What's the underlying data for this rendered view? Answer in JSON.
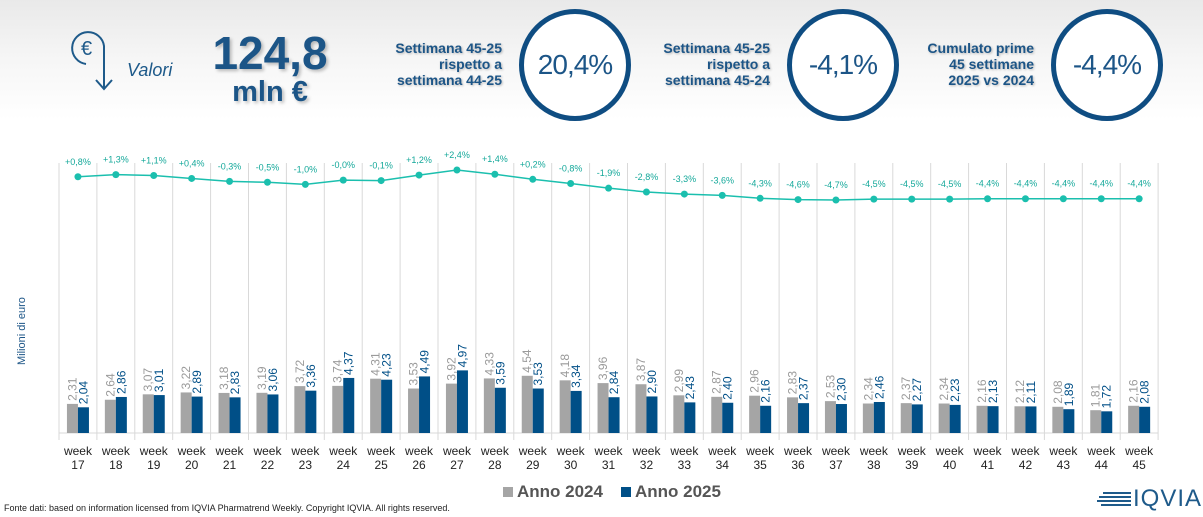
{
  "header": {
    "icon": "euro-down-arrow-icon",
    "label": "Valori",
    "total_value": "124,8",
    "total_unit": "mln €"
  },
  "kpis": [
    {
      "label_lines": [
        "Settimana 45-25",
        "rispetto a",
        "settimana 44-25"
      ],
      "value": "20,4%"
    },
    {
      "label_lines": [
        "Settimana 45-25",
        "rispetto a",
        "settimana 45-24"
      ],
      "value": "-4,1%"
    },
    {
      "label_lines": [
        "Cumulato prime",
        "45 settimane",
        "2025 vs 2024"
      ],
      "value": "-4,4%"
    }
  ],
  "colors": {
    "brand": "#1c5587",
    "series_2024": "#a5a5a5",
    "series_2025": "#004f87",
    "line": "#1bbfae",
    "grid": "#d9d9d9"
  },
  "chart_data": [
    {
      "type": "line",
      "title": "",
      "description": "Cumulative % change 2025 vs 2024",
      "x": [
        "week 17",
        "week 18",
        "week 19",
        "week 20",
        "week 21",
        "week 22",
        "week 23",
        "week 24",
        "week 25",
        "week 26",
        "week 27",
        "week 28",
        "week 29",
        "week 30",
        "week 31",
        "week 32",
        "week 33",
        "week 34",
        "week 35",
        "week 36",
        "week 37",
        "week 38",
        "week 39",
        "week 40",
        "week 41",
        "week 42",
        "week 43",
        "week 44",
        "week 45"
      ],
      "values": [
        0.8,
        1.3,
        1.1,
        0.4,
        -0.3,
        -0.5,
        -1.0,
        -0.0,
        -0.1,
        1.2,
        2.4,
        1.4,
        0.2,
        -0.8,
        -1.9,
        -2.8,
        -3.3,
        -3.6,
        -4.3,
        -4.6,
        -4.7,
        -4.5,
        -4.5,
        -4.5,
        -4.4,
        -4.4,
        -4.4,
        -4.4,
        -4.4
      ],
      "labels": [
        "+0,8%",
        "+1,3%",
        "+1,1%",
        "+0,4%",
        "-0,3%",
        "-0,5%",
        "-1,0%",
        "-0,0%",
        "-0,1%",
        "+1,2%",
        "+2,4%",
        "+1,4%",
        "+0,2%",
        "-0,8%",
        "-1,9%",
        "-2,8%",
        "-3,3%",
        "-3,6%",
        "-4,3%",
        "-4,6%",
        "-4,7%",
        "-4,5%",
        "-4,5%",
        "-4,5%",
        "-4,4%",
        "-4,4%",
        "-4,4%",
        "-4,4%",
        "-4,4%"
      ],
      "ylim": [
        -5,
        3
      ]
    },
    {
      "type": "bar",
      "title": "",
      "xlabel": "",
      "ylabel": "Milioni di euro",
      "categories_top": [
        "week",
        "week",
        "week",
        "week",
        "week",
        "week",
        "week",
        "week",
        "week",
        "week",
        "week",
        "week",
        "week",
        "week",
        "week",
        "week",
        "week",
        "week",
        "week",
        "week",
        "week",
        "week",
        "week",
        "week",
        "week",
        "week",
        "week",
        "week",
        "week"
      ],
      "categories": [
        "17",
        "18",
        "19",
        "20",
        "21",
        "22",
        "23",
        "24",
        "25",
        "26",
        "27",
        "28",
        "29",
        "30",
        "31",
        "32",
        "33",
        "34",
        "35",
        "36",
        "37",
        "38",
        "39",
        "40",
        "41",
        "42",
        "43",
        "44",
        "45"
      ],
      "series": [
        {
          "name": "Anno 2024",
          "values": [
            2.31,
            2.64,
            3.07,
            3.22,
            3.18,
            3.19,
            3.72,
            3.74,
            4.31,
            3.53,
            3.92,
            4.33,
            4.54,
            4.18,
            3.96,
            3.87,
            2.99,
            2.87,
            2.96,
            2.83,
            2.53,
            2.34,
            2.37,
            2.34,
            2.16,
            2.12,
            2.08,
            1.81,
            2.16
          ],
          "labels": [
            "2,31",
            "2,64",
            "3,07",
            "3,22",
            "3,18",
            "3,19",
            "3,72",
            "3,74",
            "4,31",
            "3,53",
            "3,92",
            "4,33",
            "4,54",
            "4,18",
            "3,96",
            "3,87",
            "2,99",
            "2,87",
            "2,96",
            "2,83",
            "2,53",
            "2,34",
            "2,37",
            "2,34",
            "2,16",
            "2,12",
            "2,08",
            "1,81",
            "2,16"
          ]
        },
        {
          "name": "Anno 2025",
          "values": [
            2.04,
            2.86,
            3.01,
            2.89,
            2.83,
            3.06,
            3.36,
            4.37,
            4.23,
            4.49,
            4.97,
            3.59,
            3.53,
            3.34,
            2.84,
            2.9,
            2.43,
            2.4,
            2.16,
            2.37,
            2.3,
            2.46,
            2.27,
            2.23,
            2.13,
            2.11,
            1.89,
            1.72,
            2.08
          ],
          "labels": [
            "2,04",
            "2,86",
            "3,01",
            "2,89",
            "2,83",
            "3,06",
            "3,36",
            "4,37",
            "4,23",
            "4,49",
            "4,97",
            "3,59",
            "3,53",
            "3,34",
            "2,84",
            "2,90",
            "2,43",
            "2,40",
            "2,16",
            "2,37",
            "2,30",
            "2,46",
            "2,27",
            "2,23",
            "2,13",
            "2,11",
            "1,89",
            "1,72",
            "2,08"
          ]
        }
      ],
      "ylim": [
        0,
        5
      ],
      "grid": false,
      "legend": "bottom-center"
    }
  ],
  "legend": [
    {
      "label": "Anno 2024"
    },
    {
      "label": "Anno 2025"
    }
  ],
  "footer": {
    "source": "Fonte dati: based on information licensed from IQVIA Pharmatrend Weekly. Copyright IQVIA. All rights reserved."
  },
  "logo": {
    "text": "IQVIA",
    "icon": "iqvia-stripes-icon"
  }
}
